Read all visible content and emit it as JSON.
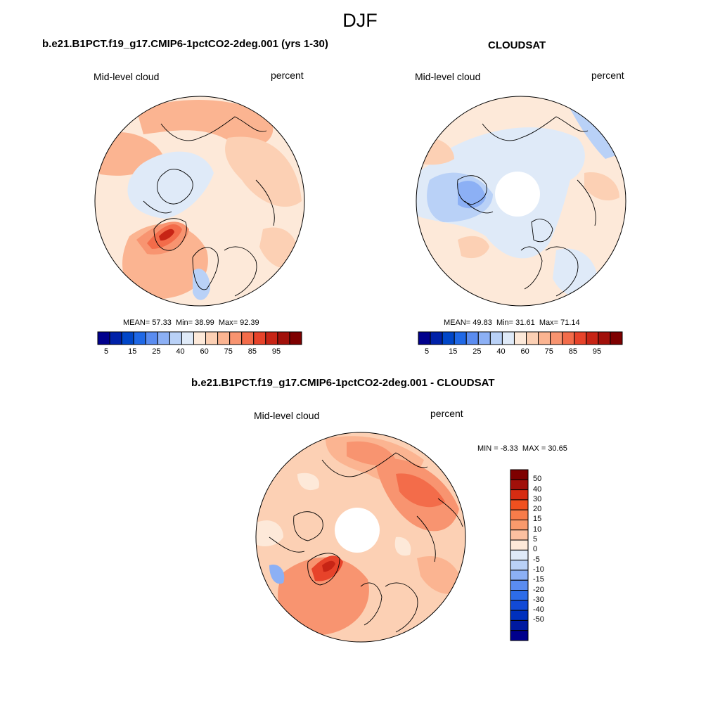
{
  "season_title": "DJF",
  "panels": {
    "model": {
      "title": "b.e21.B1PCT.f19_g17.CMIP6-1pctCO2-2deg.001 (yrs 1-30)",
      "variable": "Mid-level cloud",
      "units": "percent",
      "stats": {
        "mean_label": "MEAN=",
        "mean": "57.33",
        "min_label": "Min=",
        "min": "38.99",
        "max_label": "Max=",
        "max": "92.39"
      }
    },
    "obs": {
      "title": "CLOUDSAT",
      "variable": "Mid-level cloud",
      "units": "percent",
      "stats": {
        "mean_label": "MEAN=",
        "mean": "49.83",
        "min_label": "Min=",
        "min": "31.61",
        "max_label": "Max=",
        "max": "71.14"
      }
    },
    "diff": {
      "title": "b.e21.B1PCT.f19_g17.CMIP6-1pctCO2-2deg.001 - CLOUDSAT",
      "variable": "Mid-level cloud",
      "units": "percent",
      "stats": {
        "min_label": "MIN =",
        "min": "-8.33",
        "max_label": "MAX =",
        "max": "30.65"
      }
    }
  },
  "colorbars": {
    "absolute": {
      "colors": [
        "#00008c",
        "#0021a8",
        "#0046c8",
        "#1f68e6",
        "#5a8cf0",
        "#8cb0f5",
        "#b9d1f7",
        "#dfeaf8",
        "#fde9d9",
        "#fcd0b4",
        "#fbb491",
        "#f89470",
        "#f36c4a",
        "#e7432a",
        "#c72415",
        "#a1100a",
        "#7e0000"
      ],
      "ticks": [
        "5",
        "15",
        "25",
        "40",
        "60",
        "75",
        "85",
        "95"
      ]
    },
    "difference": {
      "colors": [
        "#7e0000",
        "#a1100a",
        "#d62c12",
        "#f0501f",
        "#f77c4a",
        "#fa9a6c",
        "#fcc0a0",
        "#fde9d9",
        "#dfeaf8",
        "#b9d1f7",
        "#8cb0f5",
        "#5a8cf0",
        "#2d6ce8",
        "#124ad6",
        "#0030bd",
        "#001aa0",
        "#00008c"
      ],
      "ticks": [
        "50",
        "40",
        "30",
        "20",
        "15",
        "10",
        "5",
        "0",
        "-5",
        "-10",
        "-15",
        "-20",
        "-30",
        "-40",
        "-50"
      ]
    }
  },
  "map_colors": {
    "light_peach": "#fde9d9",
    "peach": "#fcd0b4",
    "salmon": "#fbb491",
    "orange": "#f89470",
    "red_orange": "#f36c4a",
    "red": "#e7432a",
    "dark_red": "#c72415",
    "pale_blue": "#dfeaf8",
    "light_blue": "#b9d1f7",
    "blue": "#8cb0f5"
  }
}
